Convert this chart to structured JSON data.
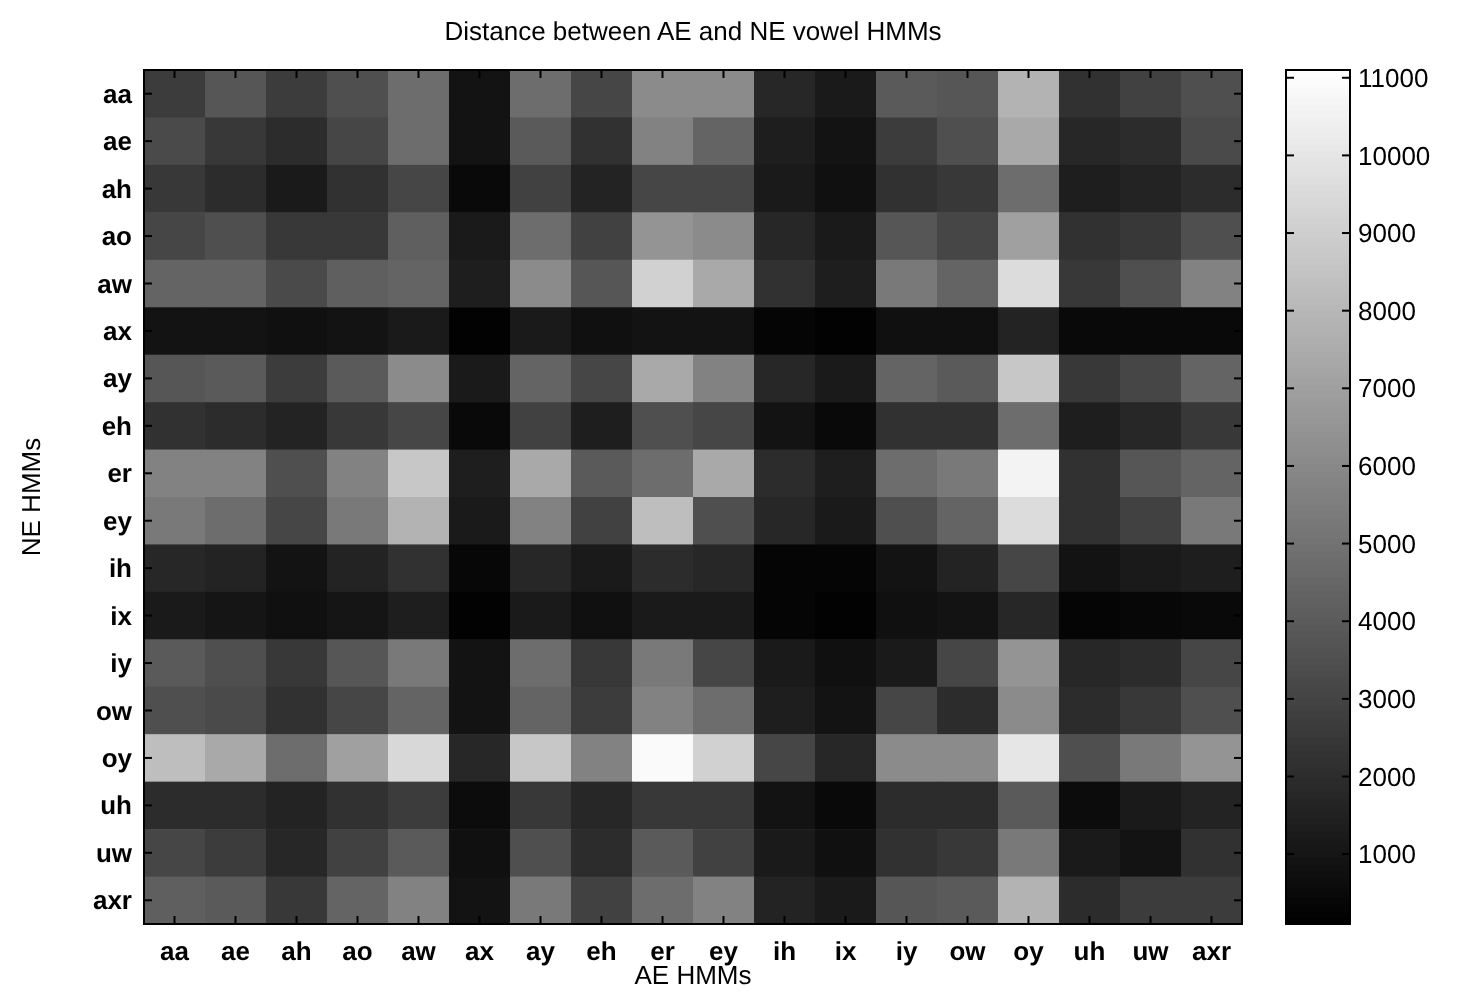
{
  "chart_data": {
    "type": "heatmap",
    "title": "Distance between AE and NE vowel HMMs",
    "xlabel": "AE HMMs",
    "ylabel": "NE HMMs",
    "categories": [
      "aa",
      "ae",
      "ah",
      "ao",
      "aw",
      "ax",
      "ay",
      "eh",
      "er",
      "ey",
      "ih",
      "ix",
      "iy",
      "ow",
      "oy",
      "uh",
      "uw",
      "axr"
    ],
    "y_categories": [
      "aa",
      "ae",
      "ah",
      "ao",
      "aw",
      "ax",
      "ay",
      "eh",
      "er",
      "ey",
      "ih",
      "ix",
      "iy",
      "ow",
      "oy",
      "uh",
      "uw",
      "axr"
    ],
    "cells": [
      [
        2700,
        3800,
        2700,
        3500,
        4800,
        900,
        4800,
        3100,
        6100,
        6100,
        1800,
        1200,
        4000,
        3800,
        7800,
        2200,
        2900,
        3500
      ],
      [
        3300,
        2500,
        2000,
        3100,
        4800,
        900,
        4000,
        2200,
        5700,
        4400,
        1400,
        900,
        2700,
        3500,
        7400,
        1800,
        2000,
        3300
      ],
      [
        2500,
        2000,
        1200,
        2200,
        3100,
        500,
        2900,
        1600,
        3100,
        3100,
        1200,
        800,
        2200,
        2500,
        4800,
        1400,
        1600,
        2000
      ],
      [
        3100,
        3500,
        2500,
        2500,
        4200,
        1200,
        4800,
        2900,
        6500,
        6100,
        1800,
        1200,
        3800,
        3100,
        7000,
        2200,
        2500,
        3500
      ],
      [
        4400,
        4400,
        3300,
        4200,
        4400,
        1400,
        6100,
        3800,
        9100,
        7400,
        2200,
        1400,
        5300,
        4400,
        9600,
        2500,
        3500,
        5700
      ],
      [
        900,
        900,
        800,
        900,
        1200,
        200,
        1200,
        800,
        900,
        900,
        300,
        200,
        800,
        800,
        1600,
        500,
        500,
        500
      ],
      [
        3800,
        4000,
        2700,
        4000,
        6100,
        1200,
        4400,
        3100,
        7400,
        5700,
        1800,
        1200,
        4400,
        4000,
        8700,
        2500,
        3100,
        4400
      ],
      [
        2200,
        2000,
        1600,
        2500,
        3100,
        500,
        2900,
        1400,
        3500,
        3100,
        900,
        500,
        2200,
        2200,
        4800,
        1400,
        1800,
        2500
      ],
      [
        5700,
        5700,
        3500,
        5700,
        8700,
        1400,
        7400,
        4000,
        4800,
        7400,
        2000,
        1400,
        4800,
        5300,
        10600,
        2200,
        3800,
        4400
      ],
      [
        5300,
        4800,
        3100,
        5300,
        7800,
        1200,
        5700,
        2900,
        8300,
        3500,
        1800,
        1200,
        3500,
        4400,
        9600,
        2200,
        2900,
        5300
      ],
      [
        1800,
        1600,
        900,
        1600,
        2200,
        400,
        1800,
        1200,
        2000,
        1800,
        300,
        300,
        900,
        1600,
        3100,
        900,
        1200,
        1400
      ],
      [
        1200,
        1000,
        800,
        1000,
        1400,
        200,
        1200,
        800,
        1200,
        1200,
        300,
        200,
        800,
        900,
        1800,
        300,
        400,
        500
      ],
      [
        4000,
        3500,
        2500,
        3800,
        5300,
        900,
        4800,
        2500,
        5300,
        3100,
        1200,
        800,
        1200,
        3100,
        6500,
        1800,
        2000,
        3100
      ],
      [
        3500,
        3300,
        2200,
        3100,
        4400,
        900,
        4400,
        2700,
        5700,
        4800,
        1400,
        900,
        3100,
        2000,
        6100,
        2000,
        2500,
        3500
      ],
      [
        8300,
        7400,
        4800,
        7000,
        9400,
        1800,
        8700,
        5700,
        10900,
        9100,
        3100,
        1800,
        6100,
        6100,
        10000,
        3500,
        5300,
        6500
      ],
      [
        2000,
        2000,
        1600,
        2200,
        2700,
        600,
        2500,
        1800,
        2500,
        2500,
        900,
        500,
        2000,
        2000,
        4000,
        600,
        1200,
        1600
      ],
      [
        3100,
        2700,
        1800,
        2900,
        4000,
        800,
        3500,
        2000,
        4000,
        2900,
        1200,
        800,
        2200,
        2500,
        5300,
        1200,
        900,
        2200
      ],
      [
        4200,
        4000,
        2500,
        4400,
        5700,
        900,
        5300,
        2900,
        4800,
        5700,
        1600,
        1200,
        3800,
        4000,
        7800,
        2000,
        2700,
        2700
      ]
    ],
    "clim": [
      100,
      11100
    ],
    "cticks": [
      1000,
      2000,
      3000,
      4000,
      5000,
      6000,
      7000,
      8000,
      9000,
      10000,
      11000
    ]
  }
}
